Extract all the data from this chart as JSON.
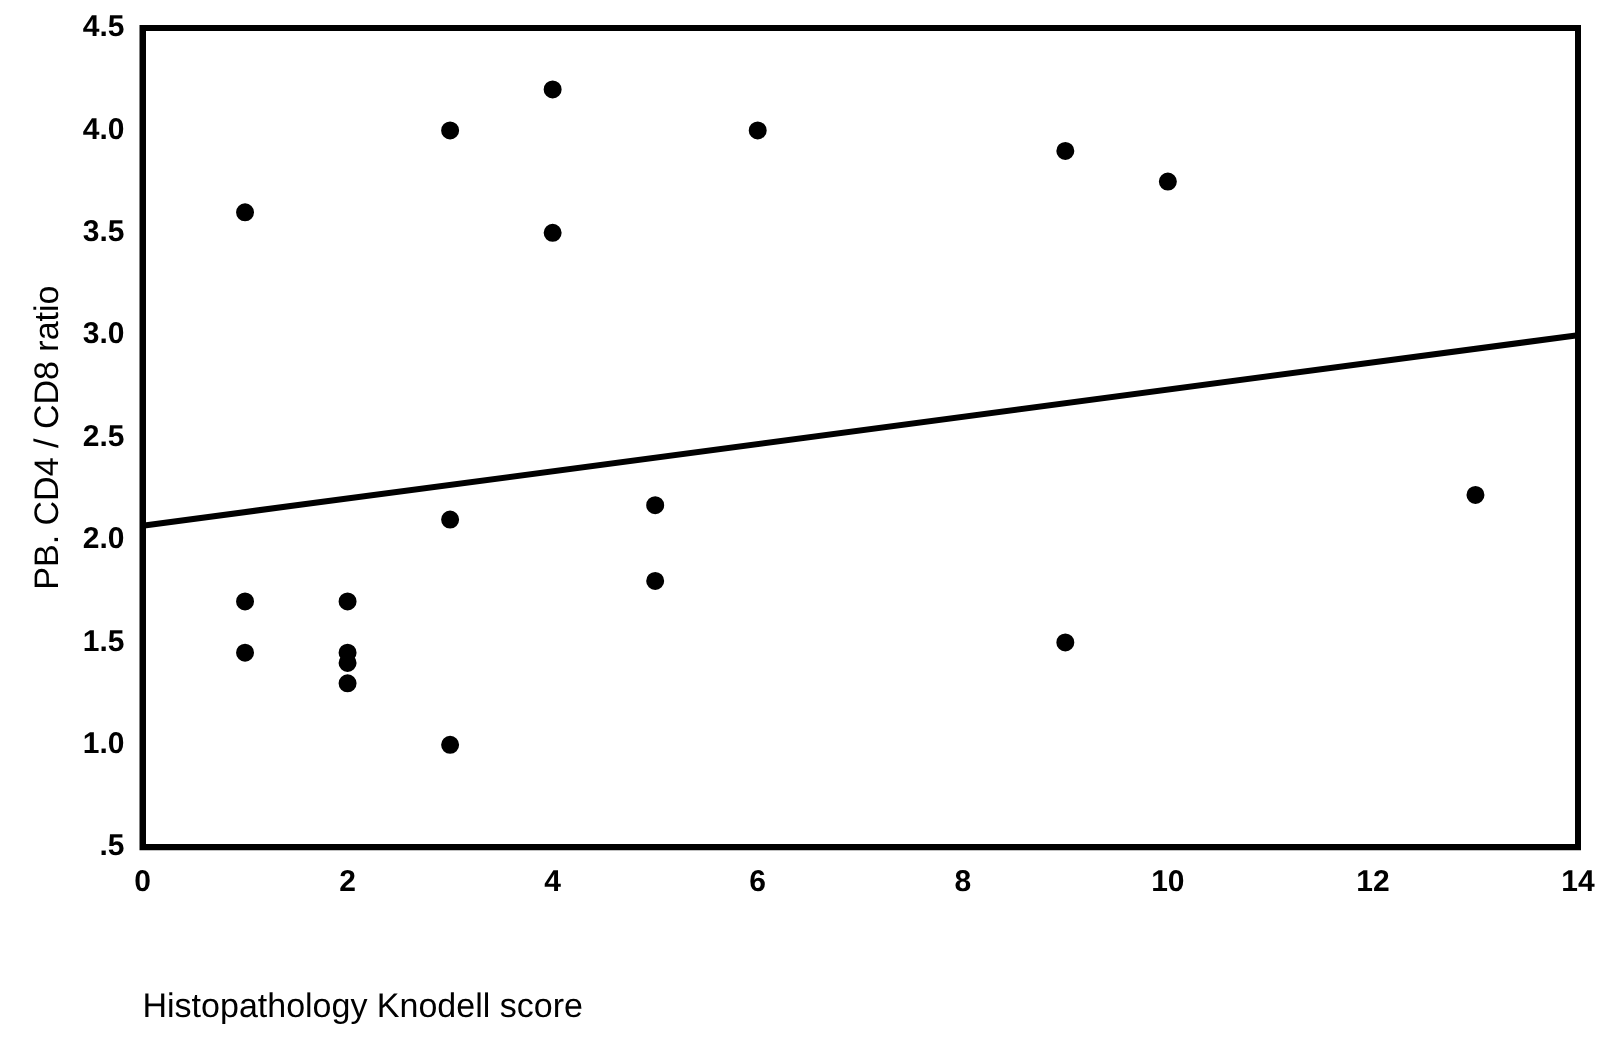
{
  "chart_data": {
    "type": "scatter",
    "xlabel": "Histopathology Knodell score",
    "ylabel": "PB. CD4 / CD8 ratio",
    "xlim": [
      0,
      14
    ],
    "xticks": [
      0,
      2,
      4,
      6,
      8,
      10,
      12,
      14
    ],
    "ylim": [
      0.5,
      4.5
    ],
    "yticks": [
      {
        "value": 0.5,
        "label": ".5"
      },
      {
        "value": 1,
        "label": "1.0"
      },
      {
        "value": 1.5,
        "label": "1.5"
      },
      {
        "value": 2,
        "label": "2.0"
      },
      {
        "value": 2.5,
        "label": "2.5"
      },
      {
        "value": 3,
        "label": "3.0"
      },
      {
        "value": 3.5,
        "label": "3.5"
      },
      {
        "value": 4,
        "label": "4.0"
      },
      {
        "value": 4.5,
        "label": "4.5"
      }
    ],
    "grid": false,
    "legend": false,
    "marker": "circle",
    "series": [
      {
        "type": "scatter",
        "color": "#000000",
        "x": [
          1,
          3,
          4,
          4,
          6,
          3,
          5,
          5,
          1,
          1,
          2,
          2,
          2,
          2,
          3,
          9,
          10,
          13,
          9
        ],
        "values": [
          3.6,
          4.0,
          4.2,
          3.5,
          4.0,
          2.1,
          2.17,
          1.8,
          1.7,
          1.45,
          1.7,
          1.45,
          1.4,
          1.3,
          1.0,
          3.9,
          3.75,
          2.22,
          1.5
        ]
      },
      {
        "type": "line",
        "color": "#000000",
        "marker": "none",
        "x": [
          0,
          14
        ],
        "values": [
          2.07,
          3.0
        ]
      }
    ]
  }
}
